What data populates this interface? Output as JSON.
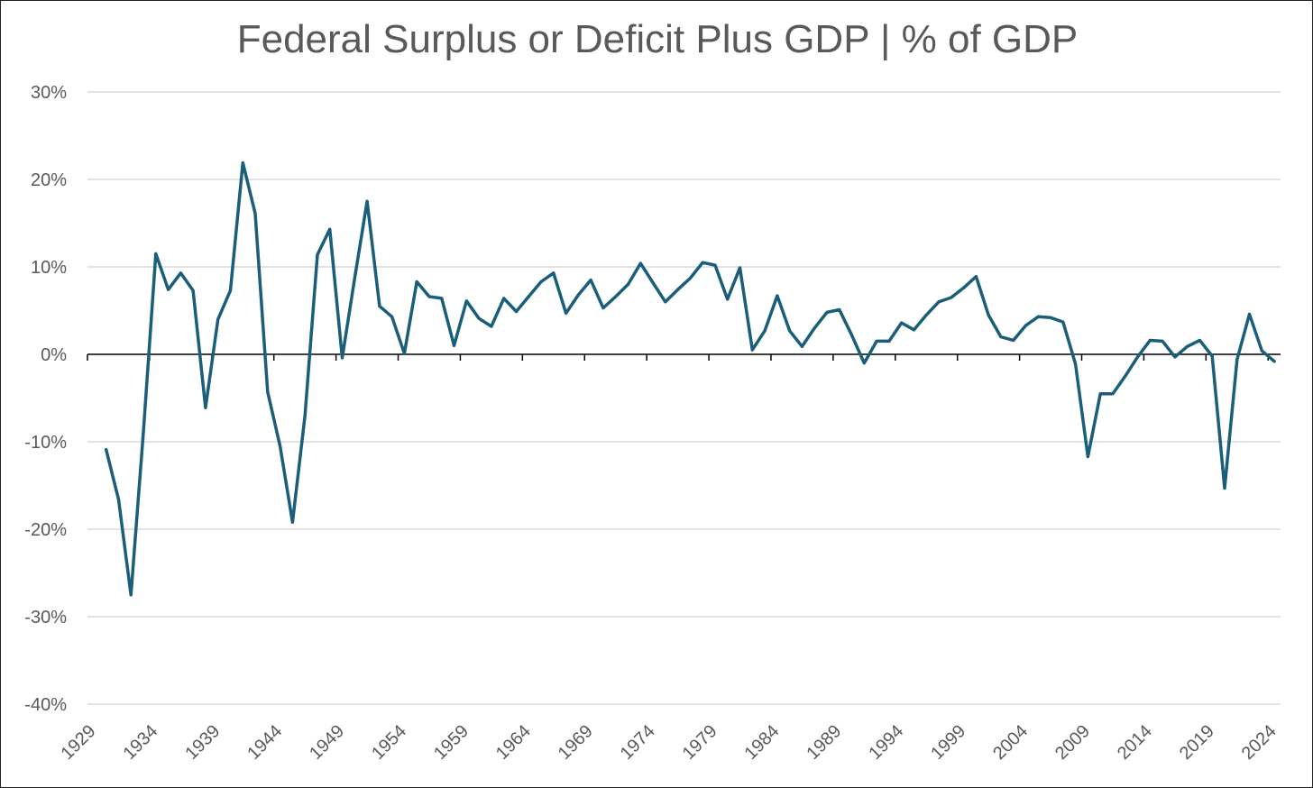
{
  "chart_data": {
    "type": "line",
    "title": "Federal Surplus or Deficit Plus GDP | % of GDP",
    "xlabel": "",
    "ylabel": "",
    "ylim": [
      -40,
      30
    ],
    "yticks": [
      30,
      20,
      10,
      0,
      -10,
      -20,
      -30,
      -40
    ],
    "ytick_labels": [
      "30%",
      "20%",
      "10%",
      "0%",
      "-10%",
      "-20%",
      "-30%",
      "-40%"
    ],
    "xcategories_start": 1929,
    "xcategories_end": 2024,
    "xtick_labels": [
      "1929",
      "1934",
      "1939",
      "1944",
      "1949",
      "1954",
      "1959",
      "1964",
      "1969",
      "1974",
      "1979",
      "1984",
      "1989",
      "1994",
      "1999",
      "2004",
      "2009",
      "2014",
      "2019",
      "2024"
    ],
    "grid": true,
    "line_color": "#1a5e7a",
    "series": [
      {
        "name": "Federal Surplus or Deficit Plus GDP",
        "x": [
          1930,
          1931,
          1932,
          1933,
          1934,
          1935,
          1936,
          1937,
          1938,
          1939,
          1940,
          1941,
          1942,
          1943,
          1944,
          1945,
          1946,
          1947,
          1948,
          1949,
          1950,
          1951,
          1952,
          1953,
          1954,
          1955,
          1956,
          1957,
          1958,
          1959,
          1960,
          1961,
          1962,
          1963,
          1964,
          1965,
          1966,
          1967,
          1968,
          1969,
          1970,
          1971,
          1972,
          1973,
          1974,
          1975,
          1976,
          1977,
          1978,
          1979,
          1980,
          1981,
          1982,
          1983,
          1984,
          1985,
          1986,
          1987,
          1988,
          1989,
          1990,
          1991,
          1992,
          1993,
          1994,
          1995,
          1996,
          1997,
          1998,
          1999,
          2000,
          2001,
          2002,
          2003,
          2004,
          2005,
          2006,
          2007,
          2008,
          2009,
          2010,
          2011,
          2012,
          2013,
          2014,
          2015,
          2016,
          2017,
          2018,
          2019,
          2020,
          2021,
          2022,
          2023,
          2024
        ],
        "values": [
          -10.9,
          -16.6,
          -27.5,
          -8.9,
          11.5,
          7.4,
          9.3,
          7.3,
          -6.1,
          4.0,
          7.3,
          21.9,
          16.1,
          -4.3,
          -10.5,
          -19.2,
          -7.0,
          11.4,
          14.3,
          -0.4,
          8.7,
          17.5,
          5.5,
          4.3,
          0.1,
          8.3,
          6.6,
          6.4,
          1.0,
          6.1,
          4.1,
          3.2,
          6.4,
          4.9,
          6.6,
          8.3,
          9.3,
          4.7,
          6.8,
          8.5,
          5.3,
          6.6,
          8.0,
          10.4,
          8.2,
          6.0,
          7.4,
          8.7,
          10.5,
          10.2,
          6.3,
          9.9,
          0.5,
          2.7,
          6.7,
          2.7,
          0.9,
          3.0,
          4.8,
          5.1,
          2.2,
          -1.0,
          1.5,
          1.5,
          3.6,
          2.8,
          4.5,
          6.0,
          6.5,
          7.6,
          8.9,
          4.5,
          2.0,
          1.6,
          3.3,
          4.3,
          4.2,
          3.7,
          -1.1,
          -11.7,
          -4.5,
          -4.5,
          -2.5,
          -0.3,
          1.6,
          1.5,
          -0.3,
          0.9,
          1.6,
          -0.2,
          -15.3,
          -0.6,
          4.6,
          0.4,
          -0.8
        ]
      }
    ]
  }
}
